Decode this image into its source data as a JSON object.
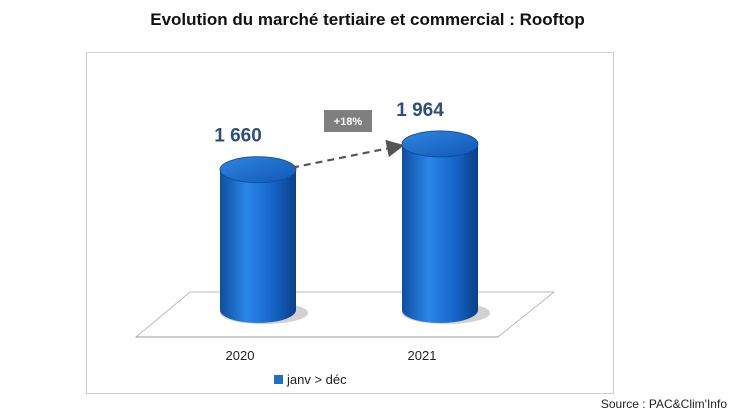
{
  "title": "Evolution du marché tertiaire et commercial : Rooftop",
  "source": "Source : PAC&Clim'Info",
  "chart_data": {
    "type": "bar",
    "categories": [
      "2020",
      "2021"
    ],
    "series": [
      {
        "name": "janv > déc",
        "values": [
          1660,
          1964
        ],
        "color": "#1f6fc5"
      }
    ],
    "data_labels": [
      "1 660",
      "1 964"
    ],
    "annotation": "+18%",
    "ylim": [
      0,
      2200
    ],
    "grid": false,
    "legend": "bottom"
  }
}
